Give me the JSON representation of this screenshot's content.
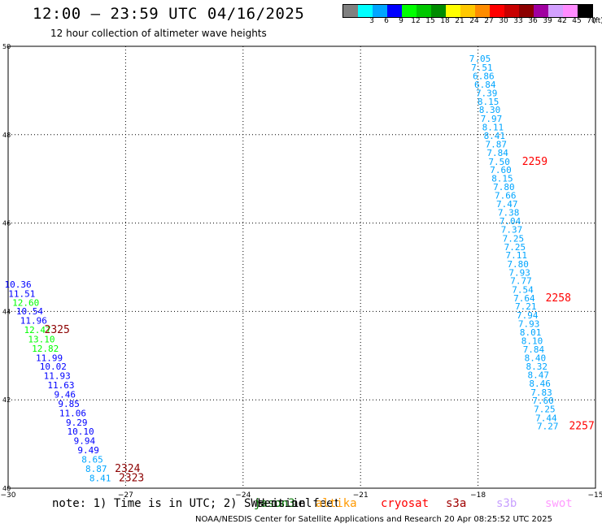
{
  "header": {
    "title": "12:00 – 23:59 UTC 04/16/2025",
    "subtitle": "12 hour collection of altimeter wave heights"
  },
  "color_scale": {
    "unit": "(ft)",
    "bins": [
      {
        "label": "",
        "color": "#808080"
      },
      {
        "label": "3",
        "color": "#00ffff"
      },
      {
        "label": "6",
        "color": "#00a5ff"
      },
      {
        "label": "9",
        "color": "#0000ff"
      },
      {
        "label": "12",
        "color": "#00ff00"
      },
      {
        "label": "15",
        "color": "#00c800"
      },
      {
        "label": "18",
        "color": "#008c00"
      },
      {
        "label": "21",
        "color": "#ffff00"
      },
      {
        "label": "24",
        "color": "#ffc800"
      },
      {
        "label": "27",
        "color": "#ff8c00"
      },
      {
        "label": "30",
        "color": "#ff0000"
      },
      {
        "label": "33",
        "color": "#c80000"
      },
      {
        "label": "36",
        "color": "#8c0000"
      },
      {
        "label": "39",
        "color": "#a000a0"
      },
      {
        "label": "42",
        "color": "#d3a0ff"
      },
      {
        "label": "45",
        "color": "#ff8cff"
      },
      {
        "label": "70",
        "color": "#000000"
      }
    ]
  },
  "footer": {
    "note": "note: 1) Time is in UTC; 2) SWH is in feet",
    "credit": "NOAA/NESDIS Center for Satellite Applications and Research   20 Apr 08:25:52 UTC 2025",
    "missions": [
      {
        "name": "jason3",
        "color": "#0a7a0a"
      },
      {
        "name": "sentinel",
        "color": "#000000"
      },
      {
        "name": "altika",
        "color": "#ff9900"
      },
      {
        "name": "cryosat",
        "color": "#ff0000"
      },
      {
        "name": "s3a",
        "color": "#a00000"
      },
      {
        "name": "s3b",
        "color": "#c8a0ff"
      },
      {
        "name": "swot",
        "color": "#ff9cff"
      }
    ]
  },
  "chart_data": {
    "type": "scatter",
    "title": "12:00 – 23:59 UTC 04/16/2025",
    "xlabel": "",
    "ylabel": "",
    "xlim": [
      -30,
      -15
    ],
    "ylim": [
      40,
      50
    ],
    "x_ticks": [
      "−30",
      "−27",
      "−24",
      "−21",
      "−18",
      "−15"
    ],
    "y_ticks": [
      "40",
      "42",
      "44",
      "46",
      "48",
      "50"
    ],
    "grid": true,
    "series": [
      {
        "track": "west",
        "points": [
          {
            "x": -29.75,
            "y": 44.54,
            "label": "10.36",
            "color": "#0000ff"
          },
          {
            "x": -29.65,
            "y": 44.33,
            "label": "11.51",
            "color": "#0000ff"
          },
          {
            "x": -29.55,
            "y": 44.13,
            "label": "12.60",
            "color": "#00ff00"
          },
          {
            "x": -29.45,
            "y": 43.93,
            "label": "10.54",
            "color": "#0000ff"
          },
          {
            "x": -29.35,
            "y": 43.72,
            "label": "11.96",
            "color": "#0000ff"
          },
          {
            "x": -29.25,
            "y": 43.51,
            "label": "12.47",
            "color": "#00ff00"
          },
          {
            "x": -29.15,
            "y": 43.3,
            "label": "13.10",
            "color": "#00ff00"
          },
          {
            "x": -29.05,
            "y": 43.09,
            "label": "12.82",
            "color": "#00ff00"
          },
          {
            "x": -28.95,
            "y": 42.88,
            "label": "11.99",
            "color": "#0000ff"
          },
          {
            "x": -28.85,
            "y": 42.68,
            "label": "10.02",
            "color": "#0000ff"
          },
          {
            "x": -28.75,
            "y": 42.47,
            "label": "11.93",
            "color": "#0000ff"
          },
          {
            "x": -28.65,
            "y": 42.26,
            "label": "11.63",
            "color": "#0000ff"
          },
          {
            "x": -28.55,
            "y": 42.05,
            "label": "9.46",
            "color": "#0000ff"
          },
          {
            "x": -28.45,
            "y": 41.84,
            "label": "9.85",
            "color": "#0000ff"
          },
          {
            "x": -28.35,
            "y": 41.63,
            "label": "11.06",
            "color": "#0000ff"
          },
          {
            "x": -28.25,
            "y": 41.42,
            "label": "9.29",
            "color": "#0000ff"
          },
          {
            "x": -28.15,
            "y": 41.21,
            "label": "10.10",
            "color": "#0000ff"
          },
          {
            "x": -28.05,
            "y": 41.0,
            "label": "9.94",
            "color": "#0000ff"
          },
          {
            "x": -27.95,
            "y": 40.79,
            "label": "9.49",
            "color": "#0000ff"
          },
          {
            "x": -27.85,
            "y": 40.58,
            "label": "8.65",
            "color": "#00a5ff"
          },
          {
            "x": -27.75,
            "y": 40.37,
            "label": "8.87",
            "color": "#00a5ff"
          },
          {
            "x": -27.65,
            "y": 40.16,
            "label": "8.41",
            "color": "#00a5ff"
          }
        ],
        "time_labels": [
          {
            "x": -28.75,
            "y": 43.51,
            "label": "2325",
            "color": "#8c0000"
          },
          {
            "x": -26.95,
            "y": 40.37,
            "label": "2324",
            "color": "#8c0000"
          },
          {
            "x": -26.85,
            "y": 40.16,
            "label": "2323",
            "color": "#8c0000"
          }
        ]
      },
      {
        "track": "east",
        "points": [
          {
            "x": -17.95,
            "y": 49.65,
            "label": "7.05",
            "color": "#00a5ff"
          },
          {
            "x": -17.9,
            "y": 49.45,
            "label": "7.51",
            "color": "#00a5ff"
          },
          {
            "x": -17.86,
            "y": 49.26,
            "label": "6.86",
            "color": "#00a5ff"
          },
          {
            "x": -17.82,
            "y": 49.06,
            "label": "6.84",
            "color": "#00a5ff"
          },
          {
            "x": -17.78,
            "y": 48.87,
            "label": "7.39",
            "color": "#00a5ff"
          },
          {
            "x": -17.74,
            "y": 48.68,
            "label": "8.15",
            "color": "#00a5ff"
          },
          {
            "x": -17.7,
            "y": 48.49,
            "label": "8.30",
            "color": "#00a5ff"
          },
          {
            "x": -17.66,
            "y": 48.29,
            "label": "7.97",
            "color": "#00a5ff"
          },
          {
            "x": -17.62,
            "y": 48.1,
            "label": "8.11",
            "color": "#00a5ff"
          },
          {
            "x": -17.58,
            "y": 47.9,
            "label": "8.41",
            "color": "#00a5ff"
          },
          {
            "x": -17.54,
            "y": 47.71,
            "label": "7.87",
            "color": "#00a5ff"
          },
          {
            "x": -17.5,
            "y": 47.52,
            "label": "7.84",
            "color": "#00a5ff"
          },
          {
            "x": -17.46,
            "y": 47.32,
            "label": "7.50",
            "color": "#00a5ff"
          },
          {
            "x": -17.42,
            "y": 47.13,
            "label": "7.60",
            "color": "#00a5ff"
          },
          {
            "x": -17.38,
            "y": 46.94,
            "label": "8.15",
            "color": "#00a5ff"
          },
          {
            "x": -17.34,
            "y": 46.75,
            "label": "7.80",
            "color": "#00a5ff"
          },
          {
            "x": -17.3,
            "y": 46.55,
            "label": "7.66",
            "color": "#00a5ff"
          },
          {
            "x": -17.26,
            "y": 46.36,
            "label": "7.47",
            "color": "#00a5ff"
          },
          {
            "x": -17.22,
            "y": 46.17,
            "label": "7.38",
            "color": "#00a5ff"
          },
          {
            "x": -17.18,
            "y": 45.97,
            "label": "7.04",
            "color": "#00a5ff"
          },
          {
            "x": -17.14,
            "y": 45.78,
            "label": "7.37",
            "color": "#00a5ff"
          },
          {
            "x": -17.1,
            "y": 45.58,
            "label": "7.25",
            "color": "#00a5ff"
          },
          {
            "x": -17.06,
            "y": 45.39,
            "label": "7.25",
            "color": "#00a5ff"
          },
          {
            "x": -17.02,
            "y": 45.2,
            "label": "7.11",
            "color": "#00a5ff"
          },
          {
            "x": -16.98,
            "y": 45.0,
            "label": "7.80",
            "color": "#00a5ff"
          },
          {
            "x": -16.94,
            "y": 44.81,
            "label": "7.93",
            "color": "#00a5ff"
          },
          {
            "x": -16.9,
            "y": 44.62,
            "label": "7.77",
            "color": "#00a5ff"
          },
          {
            "x": -16.86,
            "y": 44.42,
            "label": "7.54",
            "color": "#00a5ff"
          },
          {
            "x": -16.82,
            "y": 44.23,
            "label": "7.64",
            "color": "#00a5ff"
          },
          {
            "x": -16.78,
            "y": 44.04,
            "label": "7.21",
            "color": "#00a5ff"
          },
          {
            "x": -16.74,
            "y": 43.84,
            "label": "7.94",
            "color": "#00a5ff"
          },
          {
            "x": -16.7,
            "y": 43.65,
            "label": "7.93",
            "color": "#00a5ff"
          },
          {
            "x": -16.66,
            "y": 43.46,
            "label": "8.01",
            "color": "#00a5ff"
          },
          {
            "x": -16.62,
            "y": 43.26,
            "label": "8.10",
            "color": "#00a5ff"
          },
          {
            "x": -16.58,
            "y": 43.07,
            "label": "7.84",
            "color": "#00a5ff"
          },
          {
            "x": -16.54,
            "y": 42.88,
            "label": "8.40",
            "color": "#00a5ff"
          },
          {
            "x": -16.5,
            "y": 42.68,
            "label": "8.32",
            "color": "#00a5ff"
          },
          {
            "x": -16.46,
            "y": 42.49,
            "label": "8.47",
            "color": "#00a5ff"
          },
          {
            "x": -16.42,
            "y": 42.3,
            "label": "8.46",
            "color": "#00a5ff"
          },
          {
            "x": -16.38,
            "y": 42.1,
            "label": "7.83",
            "color": "#00a5ff"
          },
          {
            "x": -16.34,
            "y": 41.91,
            "label": "7.60",
            "color": "#00a5ff"
          },
          {
            "x": -16.3,
            "y": 41.72,
            "label": "7.25",
            "color": "#00a5ff"
          },
          {
            "x": -16.26,
            "y": 41.52,
            "label": "7.44",
            "color": "#00a5ff"
          },
          {
            "x": -16.22,
            "y": 41.33,
            "label": "7.27",
            "color": "#00a5ff"
          }
        ],
        "time_labels": [
          {
            "x": -16.55,
            "y": 47.32,
            "label": "2259",
            "color": "#ff0000"
          },
          {
            "x": -15.95,
            "y": 44.23,
            "label": "2258",
            "color": "#ff0000"
          },
          {
            "x": -15.35,
            "y": 41.33,
            "label": "2257",
            "color": "#ff0000"
          }
        ]
      }
    ]
  }
}
